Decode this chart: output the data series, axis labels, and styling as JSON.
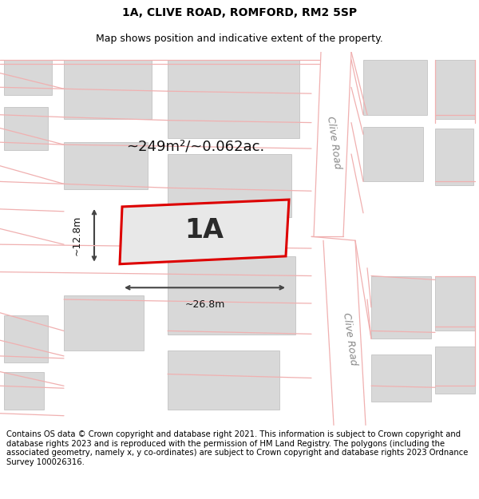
{
  "title_line1": "1A, CLIVE ROAD, ROMFORD, RM2 5SP",
  "title_line2": "Map shows position and indicative extent of the property.",
  "area_label": "~249m²/~0.062ac.",
  "property_label": "1A",
  "width_label": "~26.8m",
  "height_label": "~12.8m",
  "road_label1": "Clive Road",
  "road_label2": "Clive Road",
  "footer_text": "Contains OS data © Crown copyright and database right 2021. This information is subject to Crown copyright and database rights 2023 and is reproduced with the permission of HM Land Registry. The polygons (including the associated geometry, namely x, y co-ordinates) are subject to Crown copyright and database rights 2023 Ordnance Survey 100026316.",
  "bg_color": "#ffffff",
  "map_bg": "#ffffff",
  "building_fill": "#d8d8d8",
  "building_edge": "#bbbbbb",
  "property_fill": "#e8e8e8",
  "property_edge": "#dd0000",
  "road_line_color": "#f0b0b0",
  "road_fill": "#ffffff",
  "dim_line_color": "#444444",
  "road_text_color": "#888888",
  "title_fontsize": 10,
  "subtitle_fontsize": 9,
  "footer_fontsize": 7.2,
  "area_fontsize": 13,
  "label_fontsize": 24,
  "dim_fontsize": 9,
  "road_fontsize": 9
}
